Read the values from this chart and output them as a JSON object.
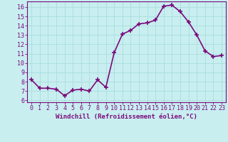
{
  "x": [
    0,
    1,
    2,
    3,
    4,
    5,
    6,
    7,
    8,
    9,
    10,
    11,
    12,
    13,
    14,
    15,
    16,
    17,
    18,
    19,
    20,
    21,
    22,
    23
  ],
  "y": [
    8.2,
    7.3,
    7.3,
    7.2,
    6.5,
    7.1,
    7.2,
    7.0,
    8.2,
    7.4,
    11.1,
    13.1,
    13.5,
    14.2,
    14.3,
    14.6,
    16.1,
    16.2,
    15.5,
    14.4,
    13.0,
    11.3,
    10.7,
    10.8
  ],
  "line_color": "#7b0a7b",
  "marker": "+",
  "marker_size": 4,
  "marker_lw": 1.2,
  "bg_color": "#c8eef0",
  "grid_color": "#aadddd",
  "xlabel": "Windchill (Refroidissement éolien,°C)",
  "ylabel_ticks": [
    6,
    7,
    8,
    9,
    10,
    11,
    12,
    13,
    14,
    15,
    16
  ],
  "ylim": [
    5.8,
    16.6
  ],
  "xlim": [
    -0.5,
    23.5
  ],
  "tick_color": "#7b0a7b",
  "label_color": "#7b0a7b",
  "font_size_label": 6.5,
  "font_size_tick": 6.0,
  "linewidth": 1.2
}
